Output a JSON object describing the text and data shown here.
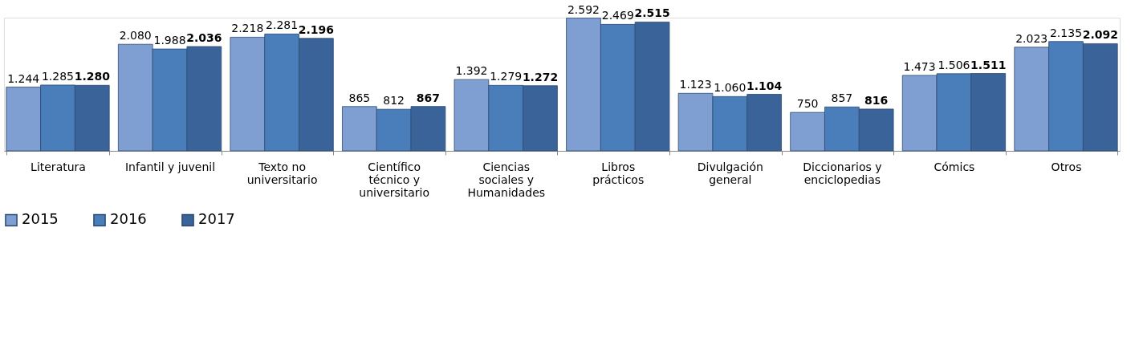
{
  "chart_data": {
    "type": "bar",
    "categories": [
      "Literatura",
      "Infantil y juvenil",
      "Texto no\nuniversitario",
      "Científico\ntécnico y\nuniversitario",
      "Ciencias\nsociales y\nHumanidades",
      "Libros\nprácticos",
      "Divulgación\ngeneral",
      "Diccionarios y\nenciclopedias",
      "Cómics",
      "Otros"
    ],
    "series": [
      {
        "name": "2015",
        "color": "#7f9fd2",
        "values": [
          1244,
          2080,
          2218,
          865,
          1392,
          2592,
          1123,
          750,
          1473,
          2023
        ],
        "value_labels": [
          "1.244",
          "2.080",
          "2.218",
          "865",
          "1.392",
          "2.592",
          "1.123",
          "750",
          "1.473",
          "2.023"
        ]
      },
      {
        "name": "2016",
        "color": "#4a7ebb",
        "values": [
          1285,
          1988,
          2281,
          812,
          1279,
          2469,
          1060,
          857,
          1506,
          2135
        ],
        "value_labels": [
          "1.285",
          "1.988",
          "2.281",
          "812",
          "1.279",
          "2.469",
          "1.060",
          "857",
          "1.506",
          "2.135"
        ]
      },
      {
        "name": "2017",
        "color": "#3a6399",
        "values": [
          1280,
          2036,
          2196,
          867,
          1272,
          2515,
          1104,
          816,
          1511,
          2092
        ],
        "value_labels": [
          "1.280",
          "2.036",
          "2.196",
          "867",
          "1.272",
          "2.515",
          "1.104",
          "816",
          "1.511",
          "2.092"
        ]
      }
    ],
    "legend": "bottom"
  }
}
